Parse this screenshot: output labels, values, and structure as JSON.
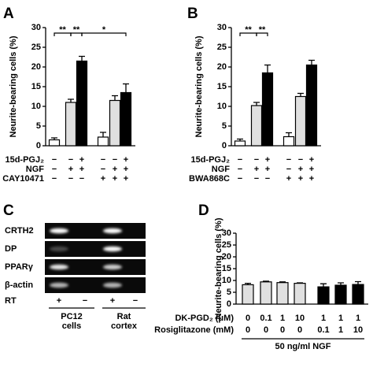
{
  "chart_data": [
    {
      "type": "bar",
      "panel": "A",
      "ylabel": "Neurite-bearing cells (%)",
      "ylim": [
        0,
        30
      ],
      "yticks": [
        0,
        5,
        10,
        15,
        20,
        25,
        30
      ],
      "values": [
        1.5,
        11,
        21.5,
        2.2,
        11.5,
        13.5
      ],
      "errors": [
        0.5,
        0.8,
        1.2,
        1.2,
        1.2,
        2.2
      ],
      "colors": [
        "#ffffff",
        "#e0e0e0",
        "#000000",
        "#ffffff",
        "#e0e0e0",
        "#000000"
      ],
      "treatments": [
        {
          "name": "15d-PGJ₂",
          "marks": [
            "−",
            "−",
            "+",
            "−",
            "−",
            "+"
          ]
        },
        {
          "name": "NGF",
          "marks": [
            "−",
            "+",
            "+",
            "−",
            "+",
            "+"
          ]
        },
        {
          "name": "CAY10471",
          "marks": [
            "−",
            "−",
            "−",
            "+",
            "+",
            "+"
          ]
        }
      ],
      "significance": [
        "**",
        "**",
        "*"
      ]
    },
    {
      "type": "bar",
      "panel": "B",
      "ylabel": "Neurite-bearing cells (%)",
      "ylim": [
        0,
        30
      ],
      "yticks": [
        0,
        5,
        10,
        15,
        20,
        25,
        30
      ],
      "values": [
        1.2,
        10.2,
        18.5,
        2.3,
        12.5,
        20.5
      ],
      "errors": [
        0.5,
        0.8,
        2,
        1,
        0.8,
        1.2
      ],
      "colors": [
        "#ffffff",
        "#e0e0e0",
        "#000000",
        "#ffffff",
        "#e0e0e0",
        "#000000"
      ],
      "treatments": [
        {
          "name": "15d-PGJ₂",
          "marks": [
            "−",
            "−",
            "+",
            "−",
            "−",
            "+"
          ]
        },
        {
          "name": "NGF",
          "marks": [
            "−",
            "+",
            "+",
            "−",
            "+",
            "+"
          ]
        },
        {
          "name": "BWA868C",
          "marks": [
            "−",
            "−",
            "−",
            "+",
            "+",
            "+"
          ]
        }
      ],
      "significance": [
        "**",
        "**"
      ]
    },
    {
      "type": "bar",
      "panel": "D",
      "ylabel": "Neurite-bearing cells (%)",
      "ylim": [
        0,
        30
      ],
      "yticks": [
        0,
        5,
        10,
        15,
        20,
        25,
        30
      ],
      "values": [
        8.2,
        9.4,
        9.1,
        8.8,
        7.3,
        8.0,
        8.3
      ],
      "errors": [
        0.6,
        0.3,
        0.3,
        0.2,
        1.3,
        1.0,
        1.2
      ],
      "colors": [
        "#e0e0e0",
        "#e0e0e0",
        "#e0e0e0",
        "#e0e0e0",
        "#000000",
        "#000000",
        "#000000"
      ],
      "treatments": [
        {
          "name": "DK-PGD₂ (μM)",
          "marks": [
            0,
            0.1,
            1,
            10,
            1,
            1,
            1
          ]
        },
        {
          "name": "Rosiglitazone (mM)",
          "marks": [
            0,
            0,
            0,
            0,
            0.1,
            1,
            10
          ]
        }
      ],
      "footer": "50 ng/ml NGF"
    }
  ],
  "gel": {
    "panel": "C",
    "rows": [
      "CRTH2",
      "DP",
      "PPARγ",
      "β-actin"
    ],
    "rt_label": "RT",
    "rt": [
      "+",
      "−",
      "+",
      "−"
    ],
    "groups": [
      [
        "PC12",
        "cells"
      ],
      [
        "Rat",
        "cortex"
      ]
    ]
  }
}
